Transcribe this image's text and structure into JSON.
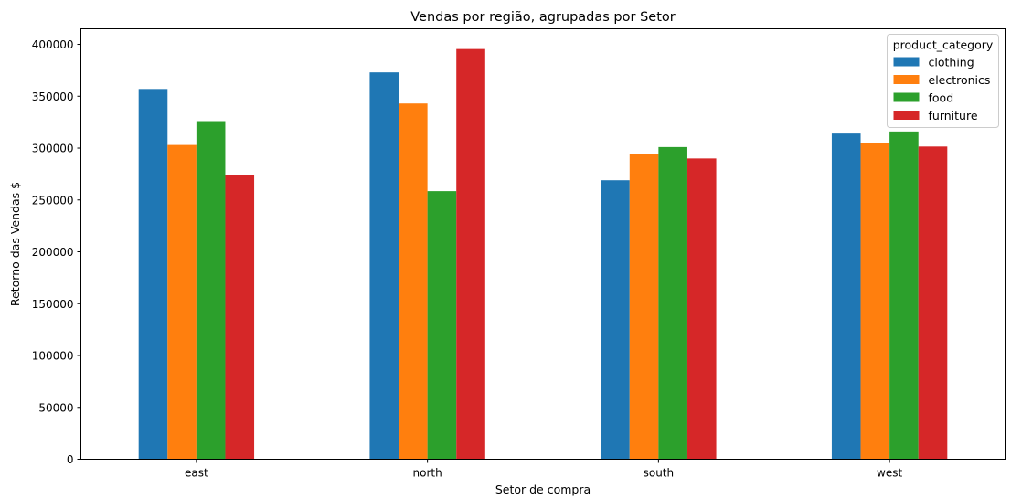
{
  "chart_data": {
    "type": "bar",
    "title": "Vendas por região, agrupadas por Setor",
    "xlabel": "Setor de compra",
    "ylabel": "Retorno das Vendas $",
    "categories": [
      "east",
      "north",
      "south",
      "west"
    ],
    "series": [
      {
        "name": "clothing",
        "color": "#1f77b4",
        "values": [
          357000,
          373000,
          269000,
          314000
        ]
      },
      {
        "name": "electronics",
        "color": "#ff7f0e",
        "values": [
          303000,
          343000,
          294000,
          305000
        ]
      },
      {
        "name": "food",
        "color": "#2ca02c",
        "values": [
          326000,
          258500,
          301000,
          316000
        ]
      },
      {
        "name": "furniture",
        "color": "#d62728",
        "values": [
          274000,
          395500,
          290000,
          301500
        ]
      }
    ],
    "ylim": [
      0,
      415000
    ],
    "yticks": [
      0,
      50000,
      100000,
      150000,
      200000,
      250000,
      300000,
      350000,
      400000
    ],
    "grid": false,
    "legend": {
      "title": "product_category",
      "position": "top-right"
    }
  }
}
